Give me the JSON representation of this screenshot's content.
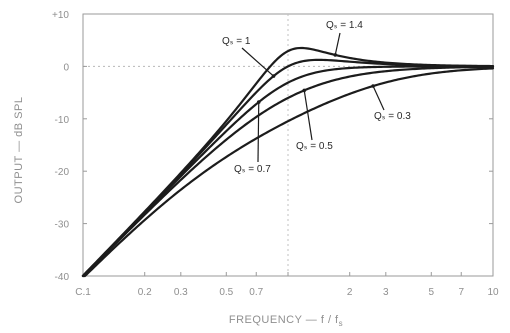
{
  "chart_data": {
    "type": "line",
    "title": "",
    "xlabel": "FREQUENCY — f / f",
    "xlabel_subscript": "s",
    "ylabel": "OUTPUT — dB SPL",
    "x_scale": "log",
    "xlim": [
      0.1,
      10
    ],
    "ylim": [
      -40,
      10
    ],
    "x_ticks": [
      {
        "value": 0.1,
        "label": "C.1"
      },
      {
        "value": 0.2,
        "label": "0.2"
      },
      {
        "value": 0.3,
        "label": "0.3"
      },
      {
        "value": 0.5,
        "label": "0.5"
      },
      {
        "value": 0.7,
        "label": "0.7"
      },
      {
        "value": 1,
        "label": ""
      },
      {
        "value": 2,
        "label": "2"
      },
      {
        "value": 3,
        "label": "3"
      },
      {
        "value": 5,
        "label": "5"
      },
      {
        "value": 7,
        "label": "7"
      },
      {
        "value": 10,
        "label": "10"
      }
    ],
    "y_ticks": [
      {
        "value": 10,
        "label": "+10"
      },
      {
        "value": 0,
        "label": "0"
      },
      {
        "value": -10,
        "label": "-10"
      },
      {
        "value": -20,
        "label": "-20"
      },
      {
        "value": -30,
        "label": "-30"
      },
      {
        "value": -40,
        "label": "-40"
      }
    ],
    "grid": false,
    "series": [
      {
        "name": "Qₛ = 0.3",
        "q": 0.3
      },
      {
        "name": "Qₛ = 0.5",
        "q": 0.5
      },
      {
        "name": "Qₛ = 0.7",
        "q": 0.7
      },
      {
        "name": "Qₛ = 1",
        "q": 1.0
      },
      {
        "name": "Qₛ = 1.4",
        "q": 1.4
      }
    ],
    "annotations": [
      {
        "text": "Qₛ = 1.4",
        "series": 4,
        "at_x": 1.7
      },
      {
        "text": "Qₛ = 1",
        "series": 3,
        "at_x": 0.85
      },
      {
        "text": "Qₛ = 0.7",
        "series": 2,
        "at_x": 0.72
      },
      {
        "text": "Qₛ = 0.5",
        "series": 1,
        "at_x": 1.2
      },
      {
        "text": "Qₛ = 0.3",
        "series": 0,
        "at_x": 2.6
      }
    ]
  }
}
